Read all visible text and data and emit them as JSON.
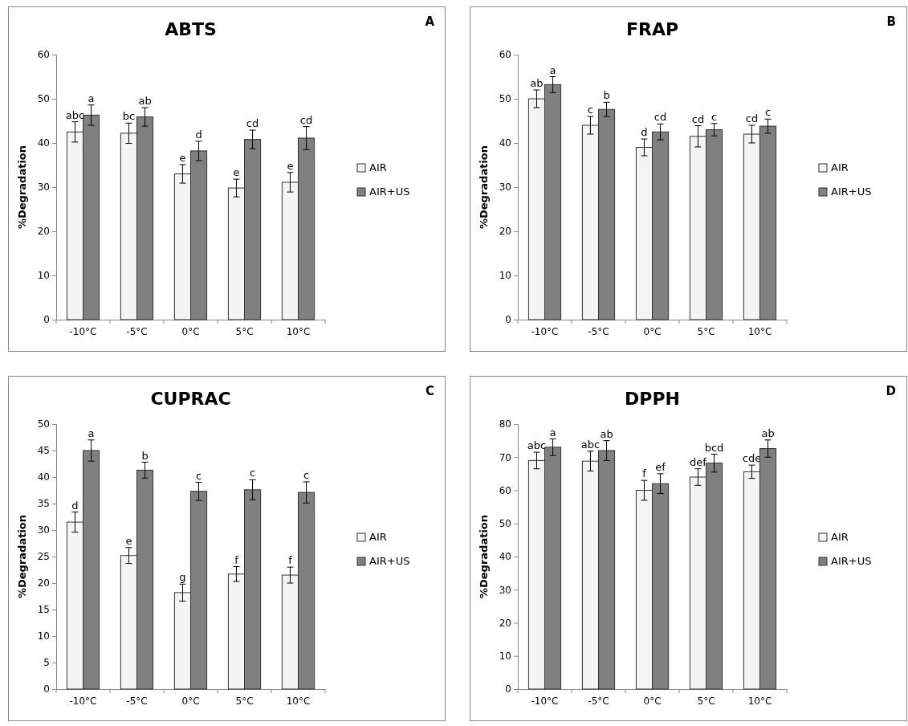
{
  "chart_data": [
    {
      "type": "bar",
      "title": "ABTS",
      "ylabel": "%Degradation",
      "annotations": [
        "A"
      ],
      "categories": [
        "-10°C",
        "-5°C",
        "0°C",
        "5°C",
        "10°C"
      ],
      "ylim": [
        0,
        60
      ],
      "yticks": [
        0,
        10,
        20,
        30,
        40,
        50,
        60
      ],
      "grid": false,
      "legend": "right",
      "series": [
        {
          "name": "AIR",
          "color": "#f4f4f4",
          "values": [
            42.5,
            42.2,
            33,
            29.8,
            31.1
          ],
          "errors": [
            2.3,
            2.3,
            2.1,
            2,
            2.2
          ],
          "value_labels": [
            "abc",
            "bc",
            "e",
            "e",
            "e"
          ]
        },
        {
          "name": "AIR+US",
          "color": "#808080",
          "values": [
            46.3,
            45.9,
            38.2,
            40.8,
            41.1
          ],
          "errors": [
            2.3,
            2.1,
            2.2,
            2.1,
            2.6
          ],
          "value_labels": [
            "a",
            "ab",
            "d",
            "cd",
            "cd"
          ]
        }
      ]
    },
    {
      "type": "bar",
      "title": "FRAP",
      "ylabel": "%Degradation",
      "annotations": [
        "B"
      ],
      "categories": [
        "-10°C",
        "-5°C",
        "0°C",
        "5°C",
        "10°C"
      ],
      "ylim": [
        0,
        60
      ],
      "yticks": [
        0,
        10,
        20,
        30,
        40,
        50,
        60
      ],
      "grid": false,
      "legend": "right",
      "series": [
        {
          "name": "AIR",
          "color": "#f4f4f4",
          "values": [
            50,
            44,
            39,
            41.5,
            42
          ],
          "errors": [
            2,
            2,
            1.9,
            2.4,
            2
          ],
          "value_labels": [
            "ab",
            "c",
            "d",
            "cd",
            "cd"
          ]
        },
        {
          "name": "AIR+US",
          "color": "#808080",
          "values": [
            53.2,
            47.6,
            42.5,
            43,
            43.8
          ],
          "errors": [
            1.8,
            1.6,
            1.8,
            1.4,
            1.6
          ],
          "value_labels": [
            "a",
            "b",
            "cd",
            "c",
            "c"
          ]
        }
      ]
    },
    {
      "type": "bar",
      "title": "CUPRAC",
      "ylabel": "%Degradation",
      "annotations": [
        "C"
      ],
      "categories": [
        "-10°C",
        "-5°C",
        "0°C",
        "5°C",
        "10°C"
      ],
      "ylim": [
        0,
        50
      ],
      "yticks": [
        0,
        5,
        10,
        15,
        20,
        25,
        30,
        35,
        40,
        45,
        50
      ],
      "grid": false,
      "legend": "right",
      "series": [
        {
          "name": "AIR",
          "color": "#f4f4f4",
          "values": [
            31.5,
            25.2,
            18.2,
            21.7,
            21.5
          ],
          "errors": [
            1.9,
            1.5,
            1.6,
            1.4,
            1.5
          ],
          "value_labels": [
            "d",
            "e",
            "g",
            "f",
            "f"
          ]
        },
        {
          "name": "AIR+US",
          "color": "#808080",
          "values": [
            45,
            41.3,
            37.3,
            37.6,
            37.1
          ],
          "errors": [
            2,
            1.5,
            1.7,
            1.9,
            2
          ],
          "value_labels": [
            "a",
            "b",
            "c",
            "c",
            "c"
          ]
        }
      ]
    },
    {
      "type": "bar",
      "title": "DPPH",
      "ylabel": "%Degradation",
      "annotations": [
        "D"
      ],
      "categories": [
        "-10°C",
        "-5°C",
        "0°C",
        "5°C",
        "10°C"
      ],
      "ylim": [
        0,
        80
      ],
      "yticks": [
        0,
        10,
        20,
        30,
        40,
        50,
        60,
        70,
        80
      ],
      "grid": false,
      "legend": "right",
      "series": [
        {
          "name": "AIR",
          "color": "#f4f4f4",
          "values": [
            69,
            68.8,
            60,
            64,
            65.6
          ],
          "errors": [
            2.5,
            3,
            3,
            2.5,
            2
          ],
          "value_labels": [
            "abc",
            "abc",
            "f",
            "def",
            "cde"
          ]
        },
        {
          "name": "AIR+US",
          "color": "#808080",
          "values": [
            73,
            72,
            62,
            68.2,
            72.6
          ],
          "errors": [
            2.5,
            3,
            3,
            2.7,
            2.6
          ],
          "value_labels": [
            "a",
            "ab",
            "ef",
            "bcd",
            "ab"
          ]
        }
      ]
    }
  ]
}
